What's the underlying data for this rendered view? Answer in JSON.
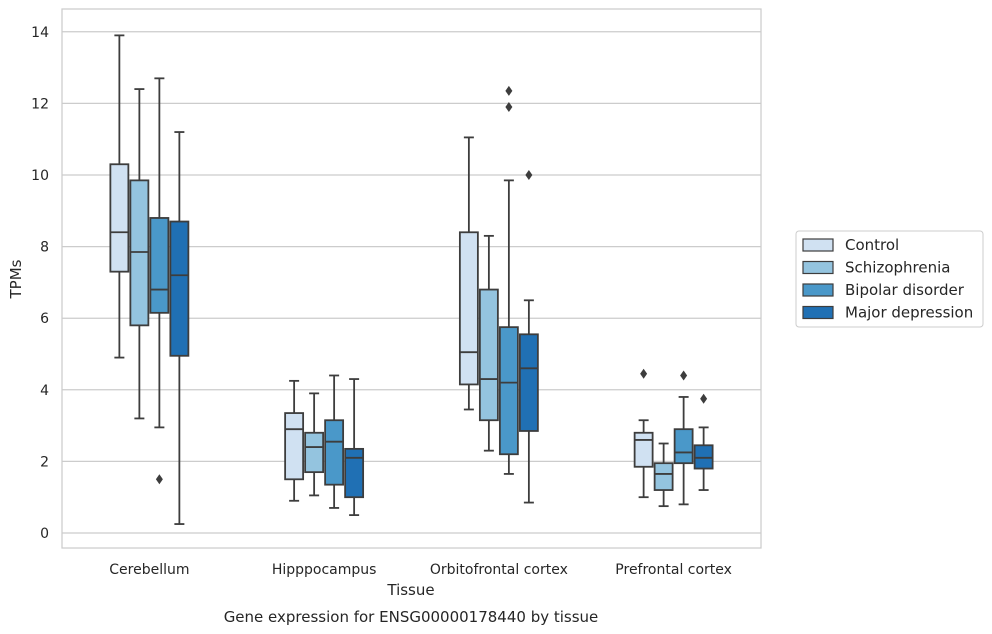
{
  "chart_data": {
    "type": "box",
    "caption": "Gene expression for ENSG00000178440 by tissue",
    "xlabel": "Tissue",
    "ylabel": "TPMs",
    "ylim": [
      -0.4,
      14.6
    ],
    "yticks": [
      0,
      2,
      4,
      6,
      8,
      10,
      12,
      14
    ],
    "grid": true,
    "legend_position": "right",
    "categories": [
      "Cerebellum",
      "Hipppocampus",
      "Orbitofrontal cortex",
      "Prefrontal cortex"
    ],
    "series": [
      {
        "name": "Control",
        "color": "#d0e1f2",
        "boxes": [
          {
            "whisker_low": 4.9,
            "q1": 7.3,
            "median": 8.4,
            "q3": 10.3,
            "whisker_high": 13.9,
            "outliers": []
          },
          {
            "whisker_low": 0.9,
            "q1": 1.5,
            "median": 2.9,
            "q3": 3.35,
            "whisker_high": 4.25,
            "outliers": []
          },
          {
            "whisker_low": 3.45,
            "q1": 4.15,
            "median": 5.05,
            "q3": 8.4,
            "whisker_high": 11.05,
            "outliers": []
          },
          {
            "whisker_low": 1.0,
            "q1": 1.85,
            "median": 2.6,
            "q3": 2.8,
            "whisker_high": 3.15,
            "outliers": [
              4.45
            ]
          }
        ]
      },
      {
        "name": "Schizophrenia",
        "color": "#94c4df",
        "boxes": [
          {
            "whisker_low": 3.2,
            "q1": 5.8,
            "median": 7.85,
            "q3": 9.85,
            "whisker_high": 12.4,
            "outliers": []
          },
          {
            "whisker_low": 1.05,
            "q1": 1.7,
            "median": 2.4,
            "q3": 2.8,
            "whisker_high": 3.9,
            "outliers": []
          },
          {
            "whisker_low": 2.3,
            "q1": 3.15,
            "median": 4.3,
            "q3": 6.8,
            "whisker_high": 8.3,
            "outliers": []
          },
          {
            "whisker_low": 0.75,
            "q1": 1.2,
            "median": 1.65,
            "q3": 1.95,
            "whisker_high": 2.5,
            "outliers": []
          }
        ]
      },
      {
        "name": "Bipolar disorder",
        "color": "#4a98c9",
        "boxes": [
          {
            "whisker_low": 2.95,
            "q1": 6.15,
            "median": 6.8,
            "q3": 8.8,
            "whisker_high": 12.7,
            "outliers": [
              1.5
            ]
          },
          {
            "whisker_low": 0.7,
            "q1": 1.35,
            "median": 2.55,
            "q3": 3.15,
            "whisker_high": 4.4,
            "outliers": []
          },
          {
            "whisker_low": 1.65,
            "q1": 2.2,
            "median": 4.2,
            "q3": 5.75,
            "whisker_high": 9.85,
            "outliers": [
              11.9,
              12.35
            ]
          },
          {
            "whisker_low": 0.8,
            "q1": 1.95,
            "median": 2.25,
            "q3": 2.9,
            "whisker_high": 3.8,
            "outliers": [
              4.4
            ]
          }
        ]
      },
      {
        "name": "Major depression",
        "color": "#2070b4",
        "boxes": [
          {
            "whisker_low": 0.25,
            "q1": 4.95,
            "median": 7.2,
            "q3": 8.7,
            "whisker_high": 11.2,
            "outliers": []
          },
          {
            "whisker_low": 0.5,
            "q1": 1.0,
            "median": 2.1,
            "q3": 2.35,
            "whisker_high": 4.3,
            "outliers": []
          },
          {
            "whisker_low": 0.85,
            "q1": 2.85,
            "median": 4.6,
            "q3": 5.55,
            "whisker_high": 6.5,
            "outliers": [
              10.0
            ]
          },
          {
            "whisker_low": 1.2,
            "q1": 1.8,
            "median": 2.1,
            "q3": 2.45,
            "whisker_high": 2.95,
            "outliers": [
              3.75
            ]
          }
        ]
      }
    ]
  }
}
